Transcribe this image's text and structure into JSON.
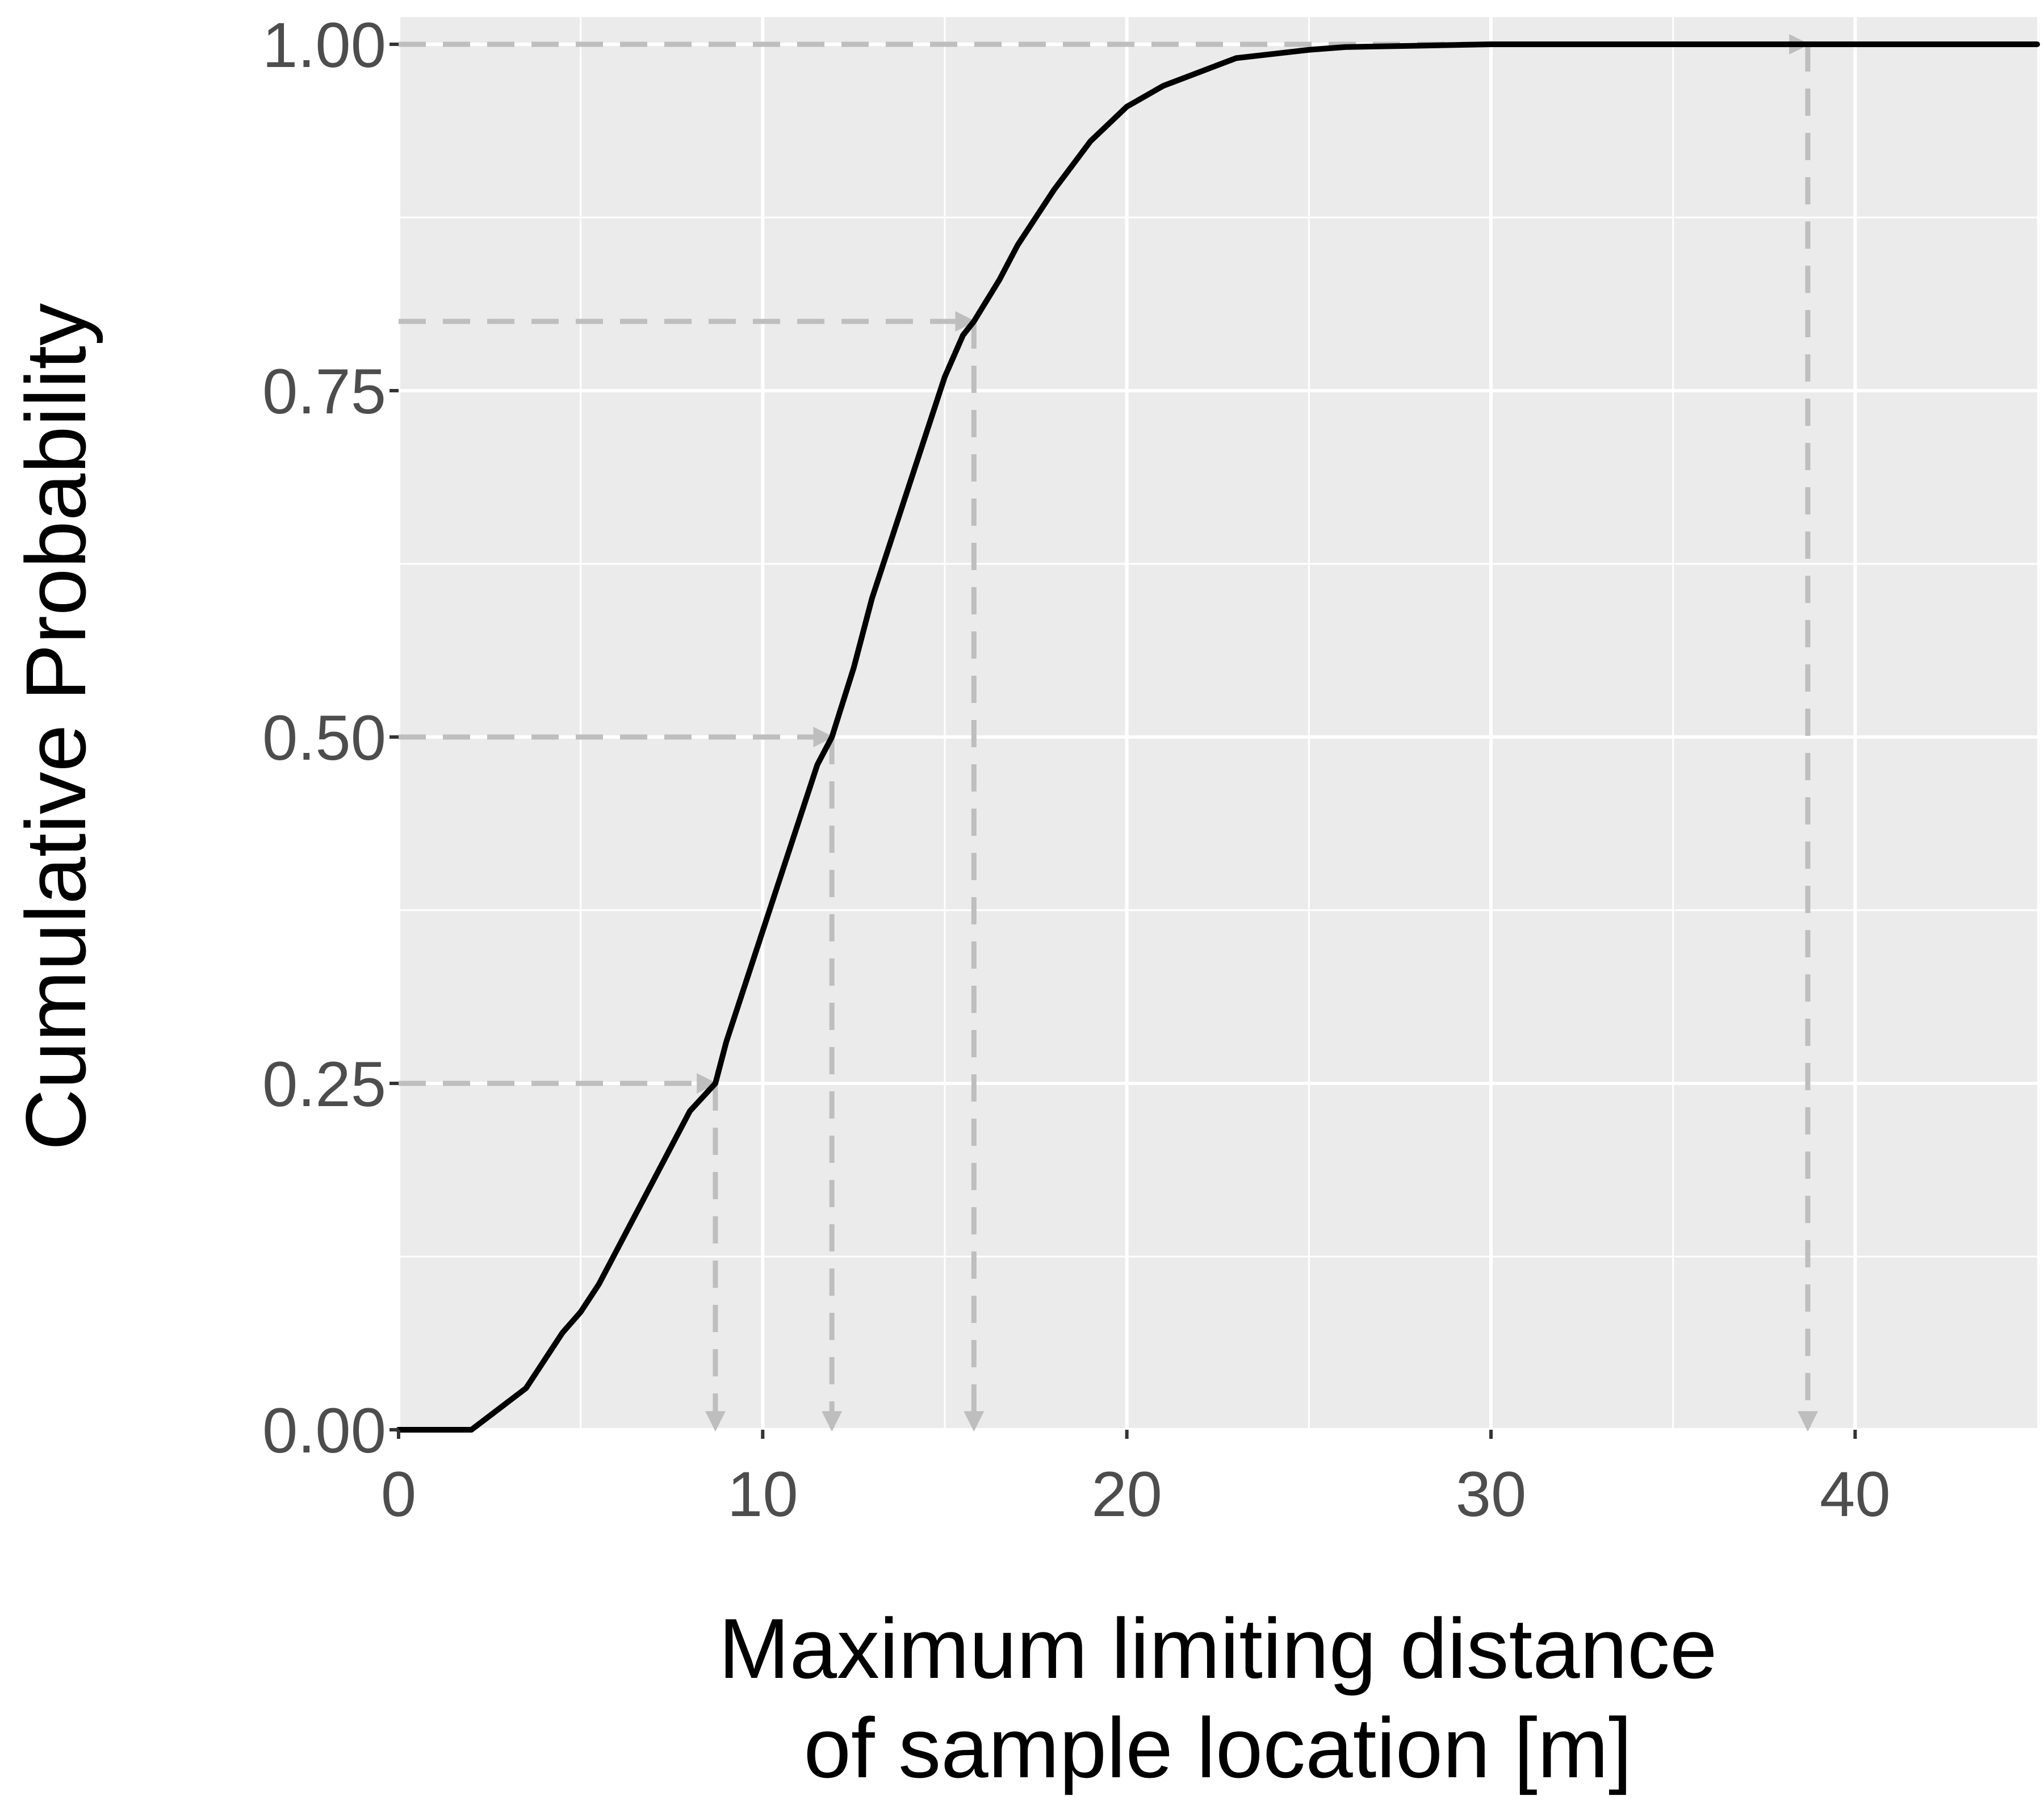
{
  "chart_data": {
    "type": "line",
    "xlabel_lines": [
      "Maximum limiting distance",
      "of sample location [m]"
    ],
    "ylabel": "Cumulative Probability",
    "xlim": [
      0,
      45
    ],
    "ylim": [
      0,
      1
    ],
    "x_ticks": [
      0,
      10,
      20,
      30,
      40
    ],
    "x_tick_labels": [
      "0",
      "10",
      "20",
      "30",
      "40"
    ],
    "y_ticks": [
      0,
      0.25,
      0.5,
      0.75,
      1.0
    ],
    "y_tick_labels": [
      "0.00",
      "0.25",
      "0.50",
      "0.75",
      "1.00"
    ],
    "grid": true,
    "panel_color": "#ebebeb",
    "grid_color": "#ffffff",
    "line_color": "#000000",
    "guide_color": "#bebebe",
    "series": [
      {
        "x": [
          0,
          1,
          2,
          2.5,
          3,
          3.5,
          4,
          4.5,
          5,
          5.5,
          6,
          6.5,
          7,
          7.5,
          8,
          8.7,
          9,
          9.5,
          10,
          10.5,
          11,
          11.5,
          11.9,
          12.5,
          13,
          13.5,
          14,
          14.5,
          15,
          15.5,
          15.8,
          16.5,
          17,
          18,
          19,
          20,
          21,
          22,
          23,
          24,
          25,
          26,
          28,
          30,
          35,
          38.7,
          45
        ],
        "y": [
          0,
          0,
          0,
          0.01,
          0.02,
          0.03,
          0.05,
          0.07,
          0.085,
          0.105,
          0.13,
          0.155,
          0.18,
          0.205,
          0.23,
          0.25,
          0.28,
          0.32,
          0.36,
          0.4,
          0.44,
          0.48,
          0.5,
          0.55,
          0.6,
          0.64,
          0.68,
          0.72,
          0.76,
          0.79,
          0.8,
          0.83,
          0.855,
          0.895,
          0.93,
          0.955,
          0.97,
          0.98,
          0.99,
          0.993,
          0.996,
          0.998,
          0.999,
          1.0,
          1.0,
          1.0,
          1.0
        ]
      }
    ],
    "quantile_guides": [
      {
        "p": 0.25,
        "x": 8.7
      },
      {
        "p": 0.5,
        "x": 11.9
      },
      {
        "p": 0.8,
        "x": 15.8
      },
      {
        "p": 1.0,
        "x": 38.7
      }
    ]
  }
}
